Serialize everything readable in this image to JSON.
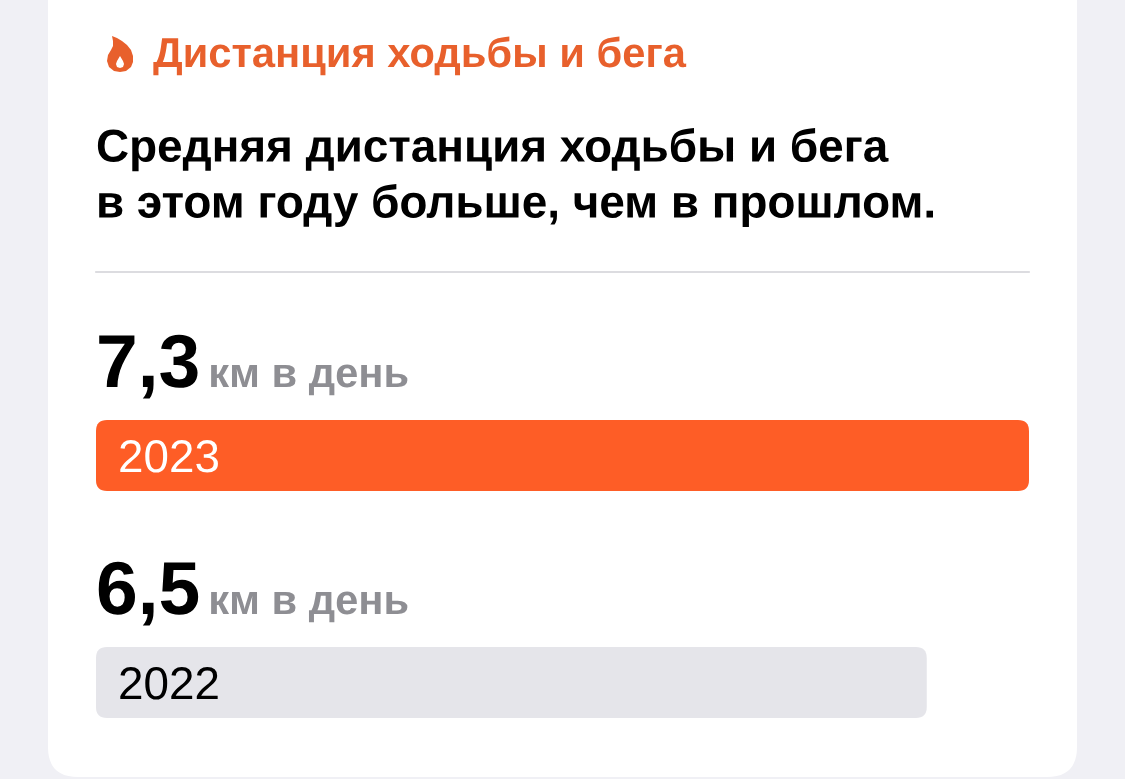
{
  "chart_data": {
    "type": "bar",
    "orientation": "horizontal",
    "title": "Дистанция ходьбы и бега",
    "subtitle": "Средняя дистанция ходьбы и бега\nв этом году больше, чем в прошлом.",
    "categories": [
      "2023",
      "2022"
    ],
    "values": [
      7.3,
      6.5
    ],
    "colors": [
      "#fe5d26",
      "#e5e5ea"
    ],
    "value_labels": [
      "7,3 км в день",
      "6,5 км в день"
    ],
    "xlim": [
      0,
      7.3
    ]
  }
}
